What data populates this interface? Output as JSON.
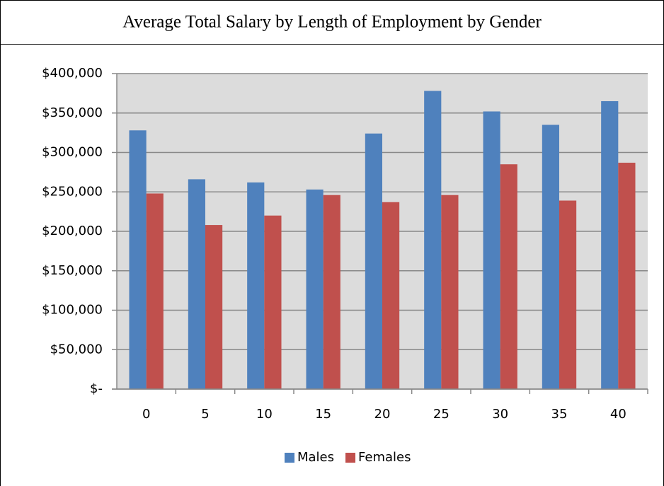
{
  "chart_data": {
    "type": "bar",
    "title": "Average Total Salary by Length of Employment by Gender",
    "categories": [
      "0",
      "5",
      "10",
      "15",
      "20",
      "25",
      "30",
      "35",
      "40"
    ],
    "series": [
      {
        "name": "Males",
        "color": "#4f81bd",
        "values": [
          328000,
          266000,
          262000,
          253000,
          324000,
          378000,
          352000,
          335000,
          365000
        ]
      },
      {
        "name": "Females",
        "color": "#c0504d",
        "values": [
          248000,
          208000,
          220000,
          246000,
          237000,
          246000,
          285000,
          239000,
          287000
        ]
      }
    ],
    "ylim": [
      0,
      400000
    ],
    "yticks": [
      {
        "value": 0,
        "label": "$-"
      },
      {
        "value": 50000,
        "label": "$50,000"
      },
      {
        "value": 100000,
        "label": "$100,000"
      },
      {
        "value": 150000,
        "label": "$150,000"
      },
      {
        "value": 200000,
        "label": "$200,000"
      },
      {
        "value": 250000,
        "label": "$250,000"
      },
      {
        "value": 300000,
        "label": "$300,000"
      },
      {
        "value": 350000,
        "label": "$350,000"
      },
      {
        "value": 400000,
        "label": "$400,000"
      }
    ],
    "grid": true,
    "legend": "bottom"
  }
}
